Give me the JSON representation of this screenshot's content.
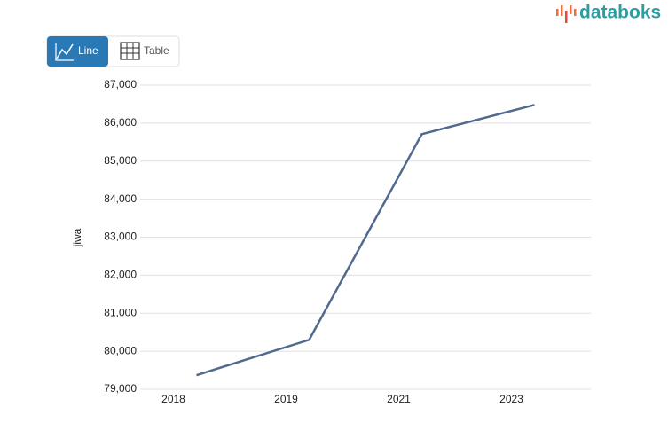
{
  "ui": {
    "logo": "databoks",
    "buttons": [
      "Line",
      "Table"
    ]
  },
  "chart_data": {
    "type": "line",
    "y_label": "jiwa",
    "categories": [
      "2018",
      "2019",
      "2021",
      "2023"
    ],
    "series": [
      {
        "color": "#50698f",
        "values": [
          79370,
          80300,
          85710,
          86480
        ]
      }
    ],
    "ylim": [
      79000,
      87000
    ],
    "yticks": [
      {
        "value": 79000,
        "label": "79,000"
      },
      {
        "value": 80000,
        "label": "80,000"
      },
      {
        "value": 81000,
        "label": "81,000"
      },
      {
        "value": 82000,
        "label": "82,000"
      },
      {
        "value": 83000,
        "label": "83,000"
      },
      {
        "value": 84000,
        "label": "84,000"
      },
      {
        "value": 85000,
        "label": "85,000"
      },
      {
        "value": 86000,
        "label": "86,000"
      },
      {
        "value": 87000,
        "label": "87,000"
      }
    ],
    "grid": true
  }
}
